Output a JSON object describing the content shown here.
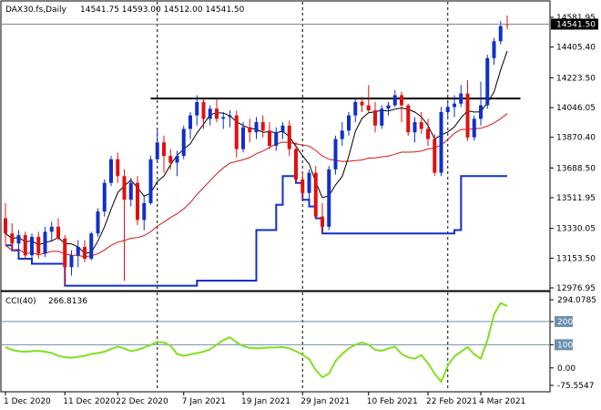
{
  "header": {
    "symbol": "DAX30.fs,Daily",
    "ohlc": "14541.75 14593.00 14512.00 14541.50"
  },
  "indicator": {
    "name": "CCI(40)",
    "value": "266.8136"
  },
  "colors": {
    "bull": "#1030c8",
    "bear": "#e01010",
    "ma_fast": "#000000",
    "ma_slow": "#d01818",
    "stepline": "#1030c8",
    "resistance": "#000000",
    "cci": "#80e020",
    "levels": "#6a8fae",
    "grid_vline": "#000000"
  },
  "chart_data": [
    {
      "type": "candlestick",
      "title": "DAX30.fs,Daily",
      "ylim": [
        12976.95,
        14581.95
      ],
      "y_ticks": [
        "14581.95",
        "14405.40",
        "14223.50",
        "14046.05",
        "13870.40",
        "13688.50",
        "13511.95",
        "13330.05",
        "13153.50",
        "12976.95"
      ],
      "x_ticks": [
        "1 Dec 2020",
        "11 Dec 2020",
        "22 Dec 2020",
        "7 Jan 2021",
        "19 Jan 2021",
        "29 Jan 2021",
        "10 Feb 2021",
        "22 Feb 2021",
        "4 Mar 2021"
      ],
      "current_price_label": "14541.50",
      "resistance_level": 14100,
      "candles": [
        [
          13390,
          13480,
          13230,
          13300
        ],
        [
          13300,
          13360,
          13200,
          13240
        ],
        [
          13240,
          13320,
          13150,
          13290
        ],
        [
          13290,
          13310,
          13150,
          13170
        ],
        [
          13170,
          13300,
          13120,
          13280
        ],
        [
          13280,
          13310,
          13150,
          13180
        ],
        [
          13180,
          13340,
          13160,
          13310
        ],
        [
          13310,
          13370,
          13250,
          13340
        ],
        [
          13340,
          13390,
          13260,
          13270
        ],
        [
          13270,
          13290,
          12990,
          13100
        ],
        [
          13100,
          13200,
          13050,
          13170
        ],
        [
          13170,
          13260,
          13100,
          13220
        ],
        [
          13220,
          13260,
          13130,
          13150
        ],
        [
          13150,
          13310,
          13140,
          13300
        ],
        [
          13300,
          13450,
          13280,
          13430
        ],
        [
          13430,
          13620,
          13400,
          13600
        ],
        [
          13600,
          13760,
          13580,
          13740
        ],
        [
          13740,
          13780,
          13600,
          13640
        ],
        [
          13640,
          13680,
          13020,
          13500
        ],
        [
          13500,
          13630,
          13460,
          13600
        ],
        [
          13600,
          13640,
          13350,
          13380
        ],
        [
          13380,
          13530,
          13320,
          13480
        ],
        [
          13480,
          13760,
          13470,
          13740
        ],
        [
          13740,
          13920,
          13720,
          13840
        ],
        [
          13840,
          13880,
          13660,
          13760
        ],
        [
          13760,
          13800,
          13680,
          13720
        ],
        [
          13720,
          13790,
          13640,
          13760
        ],
        [
          13760,
          13940,
          13740,
          13920
        ],
        [
          13920,
          14020,
          13860,
          14000
        ],
        [
          14000,
          14120,
          13940,
          14080
        ],
        [
          14080,
          14100,
          13920,
          13980
        ],
        [
          13980,
          14060,
          13940,
          14040
        ],
        [
          14040,
          14100,
          13960,
          13980
        ],
        [
          13980,
          14020,
          13920,
          13990
        ],
        [
          13990,
          14030,
          13930,
          14000
        ],
        [
          14000,
          14030,
          13750,
          13800
        ],
        [
          13800,
          13960,
          13780,
          13930
        ],
        [
          13930,
          13980,
          13840,
          13900
        ],
        [
          13900,
          13990,
          13860,
          13960
        ],
        [
          13960,
          14000,
          13870,
          13910
        ],
        [
          13910,
          13960,
          13800,
          13820
        ],
        [
          13820,
          13930,
          13790,
          13900
        ],
        [
          13900,
          13960,
          13860,
          13940
        ],
        [
          13940,
          13970,
          13760,
          13800
        ],
        [
          13800,
          13840,
          13600,
          13620
        ],
        [
          13620,
          13670,
          13500,
          13540
        ],
        [
          13540,
          13680,
          13460,
          13660
        ],
        [
          13660,
          13700,
          13390,
          13400
        ],
        [
          13400,
          13480,
          13300,
          13340
        ],
        [
          13340,
          13700,
          13320,
          13680
        ],
        [
          13680,
          13880,
          13650,
          13860
        ],
        [
          13860,
          13960,
          13820,
          13910
        ],
        [
          13910,
          14020,
          13880,
          14000
        ],
        [
          14000,
          14100,
          13960,
          14080
        ],
        [
          14080,
          14110,
          14020,
          14060
        ],
        [
          14060,
          14180,
          14020,
          14030
        ],
        [
          14030,
          14080,
          13900,
          13940
        ],
        [
          13940,
          14060,
          13920,
          14040
        ],
        [
          14040,
          14080,
          14000,
          14060
        ],
        [
          14060,
          14150,
          14050,
          14120
        ],
        [
          14120,
          14140,
          13960,
          14060
        ],
        [
          14060,
          14070,
          13880,
          13900
        ],
        [
          13900,
          13990,
          13840,
          13960
        ],
        [
          13960,
          14020,
          13890,
          13920
        ],
        [
          13920,
          13980,
          13820,
          13860
        ],
        [
          13860,
          13890,
          13640,
          13660
        ],
        [
          13660,
          14050,
          13640,
          14020
        ],
        [
          14020,
          14080,
          13980,
          14050
        ],
        [
          14050,
          14120,
          13990,
          14070
        ],
        [
          14070,
          14180,
          14050,
          14130
        ],
        [
          14130,
          14210,
          13850,
          13870
        ],
        [
          13870,
          14000,
          13850,
          13980
        ],
        [
          13980,
          14200,
          13940,
          14060
        ],
        [
          14060,
          14360,
          14040,
          14340
        ],
        [
          14340,
          14460,
          14300,
          14440
        ],
        [
          14440,
          14560,
          14420,
          14530
        ],
        [
          14541.75,
          14593.0,
          14512.0,
          14541.5
        ]
      ]
    },
    {
      "type": "line",
      "title": "CCI(40) 266.8136",
      "ylim": [
        -75.5547,
        294.0785
      ],
      "y_ticks": [
        "294.0785",
        "200",
        "100",
        "0.00",
        "-75.5547"
      ],
      "levels": [
        100,
        200
      ],
      "values": [
        90,
        78,
        72,
        70,
        72,
        74,
        70,
        64,
        52,
        46,
        44,
        48,
        52,
        60,
        64,
        70,
        82,
        92,
        84,
        72,
        78,
        88,
        100,
        112,
        110,
        96,
        60,
        52,
        58,
        64,
        70,
        80,
        100,
        120,
        132,
        110,
        94,
        86,
        84,
        86,
        88,
        88,
        90,
        84,
        72,
        56,
        38,
        -10,
        -40,
        -25,
        30,
        60,
        84,
        100,
        110,
        100,
        78,
        74,
        84,
        92,
        60,
        45,
        40,
        55,
        20,
        -25,
        -60,
        10,
        50,
        70,
        90,
        58,
        40,
        120,
        230,
        280,
        266.8136
      ]
    }
  ]
}
